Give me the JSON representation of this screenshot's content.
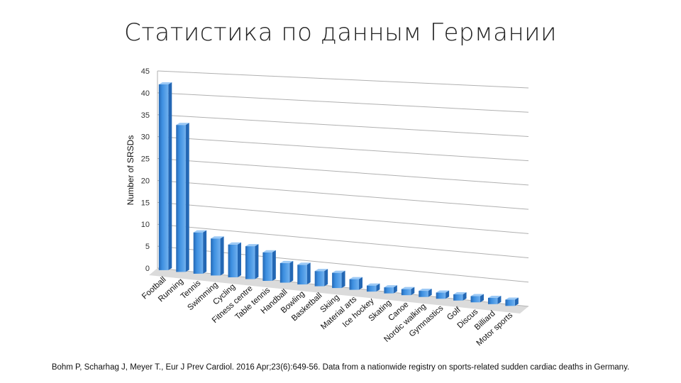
{
  "title": "Статистика по данным Германии",
  "caption": "Bohm P, Scharhag J, Meyer T., Eur J Prev Cardiol. 2016 Apr;23(6):649-56. Data from a nationwide registry on sports-related sudden cardiac deaths in Germany.",
  "colors": {
    "bar": "#3d8fe0",
    "bar_top": "#9cc9f5",
    "bar_side": "#2367b4",
    "grid": "#b0b0b0",
    "floor": "#bdbdbd"
  },
  "chart_data": {
    "type": "bar",
    "ylabel": "Number of SRSDs",
    "ylim": [
      0,
      45
    ],
    "yticks": [
      0,
      5,
      10,
      15,
      20,
      25,
      30,
      35,
      40,
      45
    ],
    "grid": true,
    "categories": [
      "Football",
      "Running",
      "Tennis",
      "Swimming",
      "Cycling",
      "Fitness centre",
      "Table tennis",
      "Handball",
      "Bowling",
      "Basketball",
      "Skiing",
      "Material arts",
      "Ice hockey",
      "Skating",
      "Canoe",
      "Nordic walking",
      "Gymnastics",
      "Golf",
      "Discus",
      "Billiard",
      "Motor sports"
    ],
    "values": [
      42,
      33,
      9,
      8,
      7,
      7,
      6,
      4,
      4,
      3,
      3,
      2,
      1,
      1,
      1,
      1,
      1,
      1,
      1,
      1,
      1
    ]
  }
}
